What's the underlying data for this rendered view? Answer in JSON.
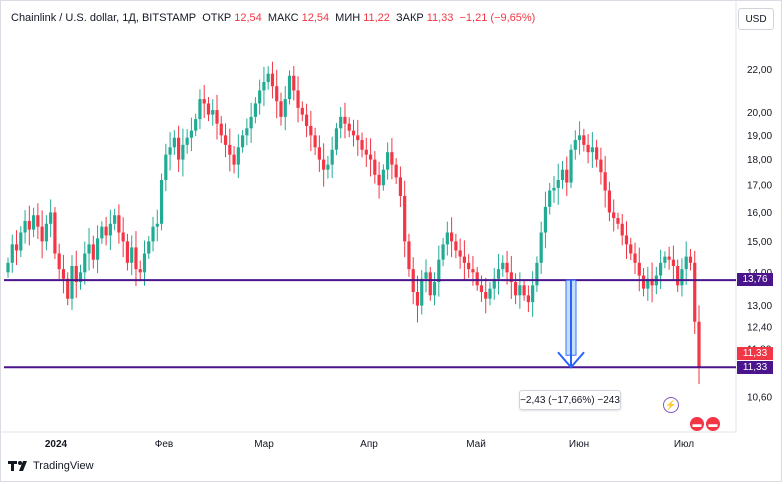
{
  "header": {
    "symbol": "Chainlink / U.S. dollar, 1Д, BITSTAMP",
    "open_label": "ОТКР",
    "open_value": "12,54",
    "high_label": "МАКС",
    "high_value": "12,54",
    "low_label": "МИН",
    "low_value": "11,22",
    "close_label": "ЗАКР",
    "close_value": "11,33",
    "change_value": "−1,21 (−9,65%)"
  },
  "currency_button": "USD",
  "footer": {
    "brand": "TradingView"
  },
  "measure": {
    "label": "−2,43 (−17,66%) −243",
    "from": 13.76,
    "to": 11.33
  },
  "price_tags": {
    "level_high": "13,76",
    "last_price": "11,33",
    "level_low": "11,33"
  },
  "colors": {
    "up": "#22ab94",
    "down": "#f23645",
    "level_line": "#4a148c",
    "measure": "#2962ff"
  },
  "icons": [
    "flash-event-icon",
    "us-flag-event-icon"
  ],
  "chart_data": {
    "type": "candlestick",
    "y_ticks": [
      "22,00",
      "20,00",
      "19,00",
      "18,00",
      "17,00",
      "16,00",
      "15,00",
      "14,00",
      "13,00",
      "12,40",
      "11,80",
      "10,60"
    ],
    "x_ticks": [
      "2024",
      "Фев",
      "Мар",
      "Апр",
      "Май",
      "Июн",
      "Июл"
    ],
    "horizontal_levels": [
      13.76,
      11.33
    ],
    "ylim": [
      10.3,
      23.5
    ],
    "y_scale": "log",
    "grid": false,
    "closes": [
      14.3,
      14.9,
      14.7,
      15.3,
      15.7,
      15.4,
      15.9,
      15.5,
      15.0,
      15.6,
      16.0,
      14.6,
      14.1,
      13.8,
      13.2,
      14.2,
      13.7,
      14.0,
      14.6,
      14.9,
      14.4,
      15.1,
      15.5,
      15.2,
      15.6,
      15.9,
      15.3,
      15.0,
      14.3,
      14.8,
      14.1,
      14.0,
      14.6,
      15.0,
      15.5,
      15.6,
      17.2,
      18.2,
      18.5,
      18.9,
      18.0,
      18.6,
      18.9,
      19.2,
      19.7,
      20.6,
      20.4,
      19.9,
      20.1,
      19.5,
      19.0,
      18.6,
      18.2,
      17.8,
      18.5,
      19.0,
      19.3,
      19.8,
      20.4,
      21.0,
      21.4,
      21.8,
      21.2,
      20.5,
      19.8,
      20.6,
      21.7,
      21.0,
      20.2,
      19.9,
      19.4,
      19.0,
      18.5,
      18.0,
      17.6,
      17.8,
      18.4,
      19.3,
      19.8,
      19.5,
      19.2,
      19.0,
      18.8,
      18.4,
      18.2,
      18.0,
      17.4,
      17.0,
      17.6,
      18.3,
      17.8,
      17.3,
      16.6,
      15.0,
      14.1,
      13.4,
      13.0,
      13.8,
      14.0,
      13.3,
      13.7,
      14.4,
      14.9,
      15.3,
      15.0,
      14.7,
      14.5,
      14.3,
      14.1,
      14.0,
      13.6,
      13.4,
      13.2,
      13.5,
      13.8,
      14.1,
      14.3,
      14.0,
      13.7,
      13.3,
      13.6,
      13.3,
      13.1,
      13.6,
      14.3,
      15.3,
      16.2,
      16.8,
      16.9,
      17.2,
      17.6,
      17.1,
      18.4,
      18.8,
      19.0,
      18.6,
      18.3,
      18.5,
      18.0,
      17.5,
      16.8,
      16.0,
      15.8,
      15.6,
      15.2,
      14.9,
      14.6,
      14.3,
      13.9,
      13.5,
      13.8,
      13.6,
      13.9,
      14.3,
      14.5,
      14.4,
      14.2,
      13.6,
      14.1,
      14.5,
      14.3,
      12.54,
      11.33
    ]
  }
}
